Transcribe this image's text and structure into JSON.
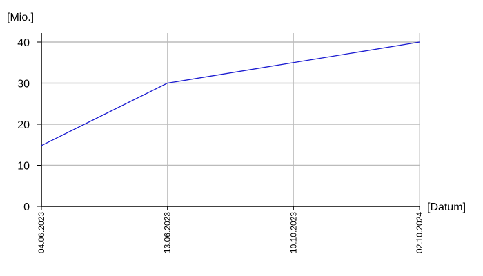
{
  "chart_data": {
    "type": "line",
    "y_label": "[Mio.]",
    "x_label": "[Datum]",
    "categories": [
      "04.06.2023",
      "13.06.2023",
      "10.10.2023",
      "02.10.2024"
    ],
    "series": [
      {
        "color": "#1a1ad0",
        "values": [
          14.8,
          30,
          35,
          40
        ]
      }
    ],
    "ylim": [
      0,
      40
    ],
    "yticks": [
      0,
      10,
      20,
      30,
      40
    ],
    "grid": true
  }
}
